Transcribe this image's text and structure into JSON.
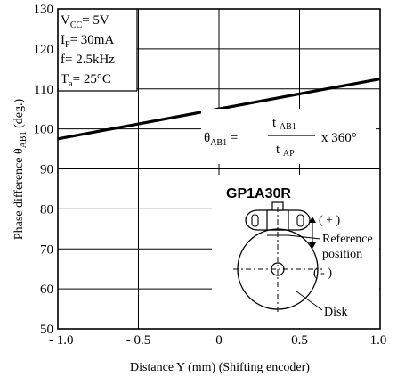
{
  "chart_data": {
    "type": "line",
    "xlabel": "Distance Y (mm) (Shifting encoder)",
    "ylabel_main": "Phase difference θ",
    "ylabel_sub": "AB1",
    "ylabel_unit": " (deg.)",
    "xlim": [
      -1.0,
      1.0
    ],
    "ylim": [
      50,
      130
    ],
    "x_ticks": [
      -1.0,
      -0.5,
      0,
      0.5,
      1.0
    ],
    "x_tick_labels": [
      "- 1.0",
      "- 0.5",
      "0",
      "0.5",
      "1.0"
    ],
    "y_ticks": [
      50,
      60,
      70,
      80,
      90,
      100,
      110,
      120,
      130
    ],
    "y_tick_labels": [
      "50",
      "60",
      "70",
      "80",
      "90",
      "100",
      "110",
      "120",
      "130"
    ],
    "grid": "horizontal and vertical lines at major ticks, partially hidden behind annotations",
    "series": [
      {
        "x": [
          -1.0,
          1.0
        ],
        "y": [
          97.5,
          112.5
        ]
      }
    ],
    "conditions": [
      {
        "main": "V",
        "sub": "CC",
        "rest": "= 5V"
      },
      {
        "main": "I",
        "sub": "F",
        "rest": "= 30mA"
      },
      {
        "main": " f",
        "sub": "",
        "rest": "= 2.5kHz"
      },
      {
        "main": "T",
        "sub": "a",
        "rest": "= 25°C"
      }
    ],
    "formula": {
      "lhs_main": "θ",
      "lhs_sub": "AB1",
      "eq": "=",
      "num_main": "t ",
      "num_sub": "AB1",
      "den_main": "t ",
      "den_sub": "AP",
      "mult": "x 360°"
    },
    "diagram": {
      "part_name": "GP1A30R",
      "plus_label": "( + )",
      "minus_label": "( - )",
      "reference_line1": "Reference",
      "reference_line2": "position",
      "disk_label": "Disk"
    }
  }
}
